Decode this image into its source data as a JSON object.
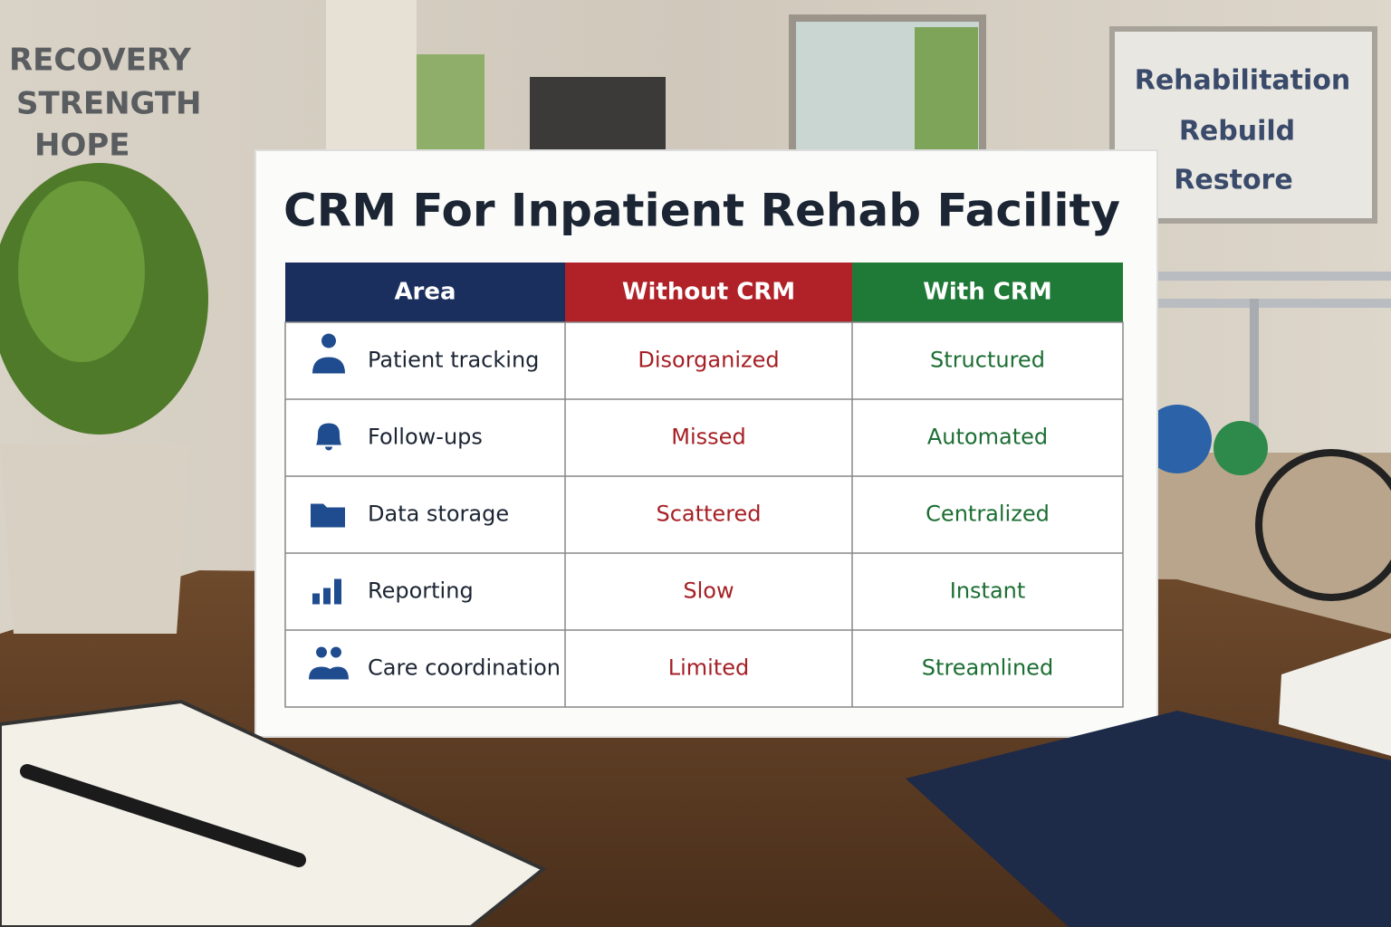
{
  "wall_left": [
    "RECOVERY",
    "STRENGTH",
    "HOPE"
  ],
  "wall_board": [
    "Rehabilitation",
    "Rebuild",
    "Restore"
  ],
  "sign": {
    "title": "CRM For Inpatient Rehab Facility",
    "table": {
      "header": [
        "Area",
        "Without CRM",
        "With CRM"
      ],
      "rows": [
        [
          "Patient tracking",
          "Disorganized",
          "Structured"
        ],
        [
          "Follow-ups",
          "Missed",
          "Automated"
        ],
        [
          "Data storage",
          "Scattered",
          "Centralized"
        ],
        [
          "Reporting",
          "Slow",
          "Instant"
        ],
        [
          "Care coordination",
          "Limited",
          "Streamlined"
        ]
      ]
    }
  }
}
